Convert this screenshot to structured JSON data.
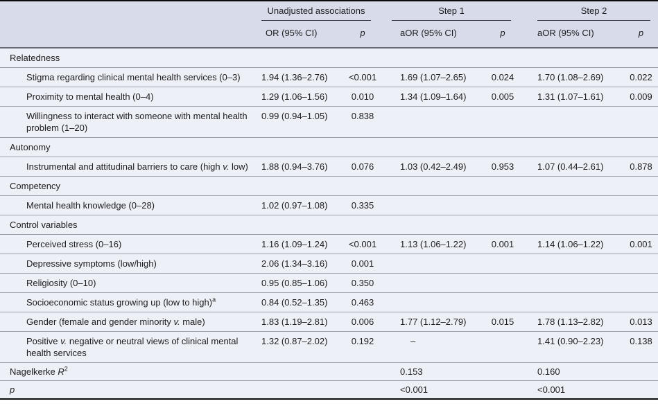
{
  "table": {
    "colors": {
      "header_background": "#d7dbea",
      "body_background": "#edf0f7",
      "row_divider": "#9aa0a9",
      "header_rule": "#62676f",
      "frame_border": "#0a0a0a",
      "text": "#1c1c1e"
    },
    "header": {
      "groups": [
        {
          "label": "Unadjusted associations"
        },
        {
          "label": "Step 1"
        },
        {
          "label": "Step 2"
        }
      ],
      "cols": {
        "or": "OR (95% CI)",
        "aor": "aOR (95% CI)",
        "p": "p"
      }
    },
    "rows": [
      {
        "type": "section",
        "label": [
          {
            "t": "Relatedness"
          }
        ]
      },
      {
        "type": "item",
        "label": [
          {
            "t": "Stigma regarding clinical mental health services (0–3)"
          }
        ],
        "cells": [
          "1.94 (1.36–2.76)",
          "<0.001",
          "1.69 (1.07–2.65)",
          "0.024",
          "1.70 (1.08–2.69)",
          "0.022"
        ]
      },
      {
        "type": "item",
        "label": [
          {
            "t": "Proximity to mental health (0–4)"
          }
        ],
        "cells": [
          "1.29 (1.06–1.56)",
          "0.010",
          "1.34 (1.09–1.64)",
          "0.005",
          "1.31 (1.07–1.61)",
          "0.009"
        ]
      },
      {
        "type": "item",
        "label": [
          {
            "t": "Willingness to interact with someone with mental health problem (1–20)"
          }
        ],
        "cells": [
          "0.99 (0.94–1.05)",
          "0.838",
          "",
          "",
          "",
          ""
        ]
      },
      {
        "type": "section",
        "label": [
          {
            "t": "Autonomy"
          }
        ]
      },
      {
        "type": "item",
        "label": [
          {
            "t": "Instrumental and attitudinal barriers to care (high "
          },
          {
            "t": "v.",
            "i": true
          },
          {
            "t": " low)"
          }
        ],
        "cells": [
          "1.88 (0.94–3.76)",
          "0.076",
          "1.03 (0.42–2.49)",
          "0.953",
          "1.07 (0.44–2.61)",
          "0.878"
        ]
      },
      {
        "type": "section",
        "label": [
          {
            "t": "Competency"
          }
        ]
      },
      {
        "type": "item",
        "label": [
          {
            "t": "Mental health knowledge (0–28)"
          }
        ],
        "cells": [
          "1.02 (0.97–1.08)",
          "0.335",
          "",
          "",
          "",
          ""
        ]
      },
      {
        "type": "section",
        "label": [
          {
            "t": "Control variables"
          }
        ]
      },
      {
        "type": "item",
        "label": [
          {
            "t": "Perceived stress (0–16)"
          }
        ],
        "cells": [
          "1.16 (1.09–1.24)",
          "<0.001",
          "1.13 (1.06–1.22)",
          "0.001",
          "1.14 (1.06–1.22)",
          "0.001"
        ]
      },
      {
        "type": "item",
        "label": [
          {
            "t": "Depressive symptoms (low/high)"
          }
        ],
        "cells": [
          "2.06 (1.34–3.16)",
          "0.001",
          "",
          "",
          "",
          ""
        ]
      },
      {
        "type": "item",
        "label": [
          {
            "t": "Religiosity (0–10)"
          }
        ],
        "cells": [
          "0.95 (0.85–1.06)",
          "0.350",
          "",
          "",
          "",
          ""
        ]
      },
      {
        "type": "item",
        "label": [
          {
            "t": "Socioeconomic status growing up (low to high)"
          },
          {
            "t": "a",
            "sup": true
          }
        ],
        "cells": [
          "0.84 (0.52–1.35)",
          "0.463",
          "",
          "",
          "",
          ""
        ]
      },
      {
        "type": "item",
        "label": [
          {
            "t": "Gender (female and gender minority "
          },
          {
            "t": "v.",
            "i": true
          },
          {
            "t": " male)"
          }
        ],
        "cells": [
          "1.83 (1.19–2.81)",
          "0.006",
          "1.77 (1.12–2.79)",
          "0.015",
          "1.78 (1.13–2.82)",
          "0.013"
        ]
      },
      {
        "type": "item",
        "label": [
          {
            "t": "Positive "
          },
          {
            "t": "v.",
            "i": true
          },
          {
            "t": " negative or neutral views of clinical mental health services"
          }
        ],
        "cells": [
          "1.32 (0.87–2.02)",
          "0.192",
          "–",
          "",
          "1.41 (0.90–2.23)",
          "0.138"
        ]
      },
      {
        "type": "stat",
        "label": [
          {
            "t": "Nagelkerke "
          },
          {
            "t": "R",
            "i": true
          },
          {
            "t": "2",
            "sup": true
          }
        ],
        "cells": [
          "",
          "",
          "0.153",
          "",
          "0.160",
          ""
        ]
      },
      {
        "type": "stat",
        "label": [
          {
            "t": "p",
            "i": true
          }
        ],
        "cells": [
          "",
          "",
          "<0.001",
          "",
          "<0.001",
          ""
        ]
      }
    ]
  }
}
